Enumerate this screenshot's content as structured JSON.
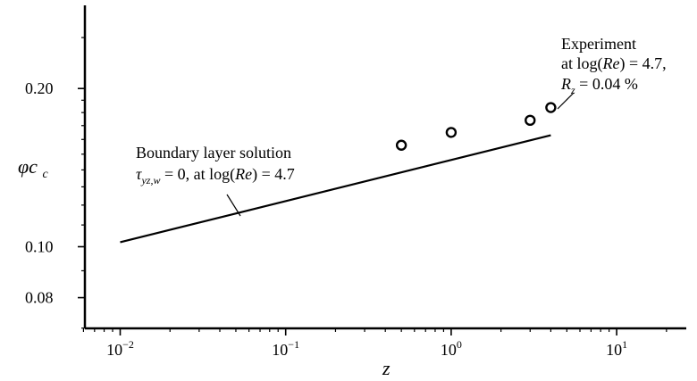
{
  "chart_data": {
    "type": "line",
    "title": "",
    "xlabel": "z",
    "ylabel": "φc",
    "xscale": "log",
    "yscale": "log",
    "xlim": [
      0.006,
      25
    ],
    "ylim": [
      0.07,
      0.29
    ],
    "x_ticks": [
      {
        "value": 0.01,
        "base": "10",
        "exp": "−2"
      },
      {
        "value": 0.1,
        "base": "10",
        "exp": "−1"
      },
      {
        "value": 1,
        "base": "10",
        "exp": "0"
      },
      {
        "value": 10,
        "base": "10",
        "exp": "1"
      }
    ],
    "y_ticks": [
      {
        "value": 0.08,
        "label": "0.08"
      },
      {
        "value": 0.1,
        "label": "0.10"
      },
      {
        "value": 0.2,
        "label": "0.20"
      }
    ],
    "series": [
      {
        "kind": "line",
        "color": "#000000",
        "x": [
          0.01,
          4.0
        ],
        "y": [
          0.102,
          0.163
        ]
      },
      {
        "kind": "scatter",
        "marker": "open-circle",
        "color": "#000000",
        "x": [
          0.5,
          1.0,
          3.0,
          4.0
        ],
        "y": [
          0.156,
          0.165,
          0.174,
          0.184
        ]
      }
    ],
    "annotations": [
      {
        "id": "boundary",
        "line1": "Boundary layer solution",
        "line2": {
          "tau": "τ",
          "tau_sub": "yz,w",
          "rest": " = 0, at log(",
          "Re": "Re",
          "end": ") = 4.7"
        },
        "pointer": {
          "x": 0.05,
          "y": 0.122
        }
      },
      {
        "id": "experiment",
        "line1": "Experiment",
        "line2": {
          "pre": "at log(",
          "Re": "Re",
          "end": ") = 4.7,"
        },
        "line3": {
          "R": "R",
          "R_sub": "z",
          "rest": " = 0.04 %"
        },
        "pointer": {
          "x": 4.0,
          "y": 0.184
        }
      }
    ],
    "grid": false,
    "legend": "none"
  }
}
